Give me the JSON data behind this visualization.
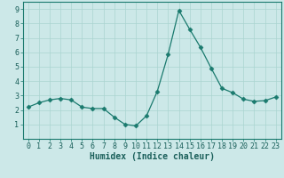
{
  "x": [
    0,
    1,
    2,
    3,
    4,
    5,
    6,
    7,
    8,
    9,
    10,
    11,
    12,
    13,
    14,
    15,
    16,
    17,
    18,
    19,
    20,
    21,
    22,
    23
  ],
  "y": [
    2.2,
    2.5,
    2.7,
    2.8,
    2.7,
    2.2,
    2.1,
    2.1,
    1.5,
    1.0,
    0.9,
    1.6,
    3.3,
    5.85,
    8.9,
    7.6,
    6.35,
    4.9,
    3.5,
    3.2,
    2.75,
    2.6,
    2.65,
    2.9
  ],
  "xlabel": "Humidex (Indice chaleur)",
  "ylim": [
    0,
    9.5
  ],
  "xlim": [
    -0.5,
    23.5
  ],
  "yticks": [
    1,
    2,
    3,
    4,
    5,
    6,
    7,
    8,
    9
  ],
  "xticks": [
    0,
    1,
    2,
    3,
    4,
    5,
    6,
    7,
    8,
    9,
    10,
    11,
    12,
    13,
    14,
    15,
    16,
    17,
    18,
    19,
    20,
    21,
    22,
    23
  ],
  "line_color": "#1a7a6e",
  "marker": "D",
  "marker_size": 2.5,
  "bg_color": "#cce8e8",
  "grid_color": "#aad4d0",
  "axis_color": "#1a7a6e",
  "label_color": "#1a5f5a",
  "xlabel_fontsize": 7,
  "tick_fontsize": 6
}
